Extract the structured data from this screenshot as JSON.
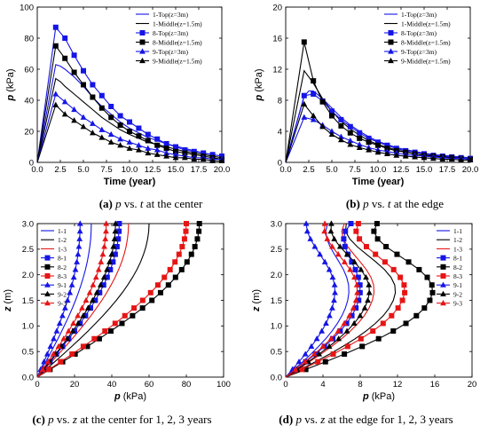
{
  "colors": {
    "blue": "#1515e6",
    "black": "#000000",
    "red": "#e61515"
  },
  "chart_data": [
    {
      "panel": "a",
      "type": "line",
      "xlabel": "Time (year)",
      "ylabel": "p (kPa)",
      "xlim": [
        0,
        20
      ],
      "ylim": [
        0,
        100
      ],
      "xticks": [
        "0.0",
        "2.5",
        "5.0",
        "7.5",
        "10.0",
        "12.5",
        "15.0",
        "17.5",
        "20.0"
      ],
      "yticks": [
        "0",
        "20",
        "40",
        "60",
        "80",
        "100"
      ],
      "legend_position": "top-right",
      "caption": {
        "letter": "(a)",
        "var1": "p",
        "mid": "vs.",
        "var2": "t",
        "rest": "at the center"
      },
      "series": [
        {
          "name": "1-Top(z=3m)",
          "color": "blue",
          "marker": "none",
          "x": [
            0,
            2,
            2.5,
            3,
            4,
            5,
            6,
            7,
            8,
            9,
            10,
            12,
            14,
            16,
            18,
            20
          ],
          "y": [
            0,
            63,
            62,
            60,
            55,
            49,
            42,
            36,
            31,
            26,
            22,
            16,
            12,
            9,
            6,
            4
          ]
        },
        {
          "name": "1-Middle(z=1.5m)",
          "color": "black",
          "marker": "none",
          "x": [
            0,
            2,
            2.5,
            3,
            4,
            5,
            6,
            7,
            8,
            9,
            10,
            12,
            14,
            16,
            18,
            20
          ],
          "y": [
            0,
            54,
            52,
            49,
            44,
            39,
            34,
            29,
            25,
            21,
            18,
            13,
            10,
            7,
            5,
            3
          ]
        },
        {
          "name": "8-Top(z=3m)",
          "color": "blue",
          "marker": "square",
          "x": [
            0,
            2,
            3,
            4,
            5,
            6,
            7,
            8,
            9,
            10,
            11,
            12,
            13,
            14,
            15,
            16,
            17,
            18,
            19,
            20
          ],
          "y": [
            0,
            87,
            80,
            69,
            59,
            50,
            43,
            36,
            30,
            26,
            22,
            18,
            15,
            12,
            10,
            8,
            7,
            6,
            5,
            4
          ]
        },
        {
          "name": "8-Middle(z=1.5m)",
          "color": "black",
          "marker": "square",
          "x": [
            0,
            2,
            3,
            4,
            5,
            6,
            7,
            8,
            9,
            10,
            11,
            12,
            13,
            14,
            15,
            16,
            17,
            18,
            19,
            20
          ],
          "y": [
            0,
            75,
            67,
            58,
            50,
            42,
            35,
            29,
            24,
            20,
            17,
            14,
            11,
            9,
            7,
            6,
            5,
            4,
            3,
            2
          ]
        },
        {
          "name": "9-Top(z=3m)",
          "color": "blue",
          "marker": "triangle",
          "x": [
            0,
            2,
            3,
            4,
            5,
            6,
            7,
            8,
            9,
            10,
            11,
            12,
            13,
            14,
            15,
            16,
            17,
            18,
            19,
            20
          ],
          "y": [
            0,
            44,
            39,
            34,
            29,
            25,
            21,
            18,
            15,
            13,
            11,
            9,
            8,
            6,
            5,
            4,
            3,
            3,
            2,
            2
          ]
        },
        {
          "name": "9-Middle(z=1.5m)",
          "color": "black",
          "marker": "triangle",
          "x": [
            0,
            2,
            3,
            4,
            5,
            6,
            7,
            8,
            9,
            10,
            11,
            12,
            13,
            14,
            15,
            16,
            17,
            18,
            19,
            20
          ],
          "y": [
            0,
            37,
            31,
            27,
            23,
            19,
            16,
            13,
            11,
            9,
            8,
            6,
            5,
            4,
            3,
            3,
            2,
            2,
            1,
            1
          ]
        }
      ]
    },
    {
      "panel": "b",
      "type": "line",
      "xlabel": "Time (year)",
      "ylabel": "p (kPa)",
      "xlim": [
        0,
        20
      ],
      "ylim": [
        0,
        20
      ],
      "xticks": [
        "0.0",
        "2.5",
        "5.0",
        "7.5",
        "10.0",
        "12.5",
        "15.0",
        "17.5",
        "20.0"
      ],
      "yticks": [
        "0",
        "4",
        "8",
        "12",
        "16",
        "20"
      ],
      "legend_position": "top-right",
      "caption": {
        "letter": "(b)",
        "var1": "p",
        "mid": "vs.",
        "var2": "t",
        "rest": "at the edge"
      },
      "series": [
        {
          "name": "1-Top(z=3m)",
          "color": "blue",
          "marker": "none",
          "x": [
            0,
            2,
            2.5,
            3,
            4,
            5,
            6,
            7,
            8,
            9,
            10,
            12,
            14,
            16,
            18,
            20
          ],
          "y": [
            0,
            8.5,
            9.2,
            9.2,
            8.2,
            7.0,
            5.8,
            4.8,
            4.0,
            3.3,
            2.7,
            1.9,
            1.4,
            1.0,
            0.8,
            0.6
          ]
        },
        {
          "name": "1-Middle(z=1.5m)",
          "color": "black",
          "marker": "none",
          "x": [
            0,
            2,
            3,
            4,
            5,
            6,
            7,
            8,
            9,
            10,
            12,
            14,
            16,
            18,
            20
          ],
          "y": [
            0,
            11.8,
            10.2,
            8.2,
            6.6,
            5.3,
            4.3,
            3.5,
            2.8,
            2.3,
            1.6,
            1.1,
            0.8,
            0.6,
            0.4
          ]
        },
        {
          "name": "8-Top(z=3m)",
          "color": "blue",
          "marker": "square",
          "x": [
            0,
            2,
            3,
            4,
            5,
            6,
            7,
            8,
            9,
            10,
            11,
            12,
            13,
            14,
            15,
            16,
            17,
            18,
            19,
            20
          ],
          "y": [
            0,
            8.6,
            8.8,
            7.9,
            6.6,
            5.5,
            4.6,
            3.8,
            3.1,
            2.6,
            2.2,
            1.8,
            1.5,
            1.3,
            1.1,
            0.9,
            0.8,
            0.7,
            0.6,
            0.5
          ]
        },
        {
          "name": "8-Middle(z=1.5m)",
          "color": "black",
          "marker": "square",
          "x": [
            0,
            2,
            3,
            4,
            5,
            6,
            7,
            8,
            9,
            10,
            11,
            12,
            13,
            14,
            15,
            16,
            17,
            18,
            19,
            20
          ],
          "y": [
            0,
            15.5,
            10.5,
            7.8,
            6.0,
            4.7,
            3.8,
            3.1,
            2.6,
            2.2,
            1.8,
            1.5,
            1.3,
            1.1,
            0.9,
            0.8,
            0.7,
            0.6,
            0.5,
            0.4
          ]
        },
        {
          "name": "9-Top(z=3m)",
          "color": "blue",
          "marker": "triangle",
          "x": [
            0,
            2,
            3,
            4,
            5,
            6,
            7,
            8,
            9,
            10,
            11,
            12,
            13,
            14,
            15,
            16,
            17,
            18,
            19,
            20
          ],
          "y": [
            0,
            5.8,
            5.5,
            4.8,
            4.0,
            3.3,
            2.8,
            2.3,
            1.9,
            1.6,
            1.4,
            1.2,
            1.0,
            0.9,
            0.8,
            0.7,
            0.6,
            0.5,
            0.5,
            0.4
          ]
        },
        {
          "name": "9-Middle(z=1.5m)",
          "color": "black",
          "marker": "triangle",
          "x": [
            0,
            2,
            3,
            4,
            5,
            6,
            7,
            8,
            9,
            10,
            11,
            12,
            13,
            14,
            15,
            16,
            17,
            18,
            19,
            20
          ],
          "y": [
            0,
            7.5,
            6.0,
            4.6,
            3.6,
            2.9,
            2.3,
            1.9,
            1.6,
            1.3,
            1.1,
            0.9,
            0.8,
            0.7,
            0.6,
            0.5,
            0.4,
            0.4,
            0.3,
            0.3
          ]
        }
      ]
    },
    {
      "panel": "c",
      "type": "line",
      "xlabel": "p (kPa)",
      "ylabel": "z (m)",
      "xlim": [
        0,
        100
      ],
      "ylim": [
        0,
        3
      ],
      "xticks": [
        "0",
        "20",
        "40",
        "60",
        "80",
        "100"
      ],
      "yticks": [
        "0.0",
        "0.5",
        "1.0",
        "1.5",
        "2.0",
        "2.5",
        "3.0"
      ],
      "legend_position": "top-left",
      "caption": {
        "letter": "(c)",
        "var1": "p",
        "mid": "vs.",
        "var2": "z",
        "rest": "at the center for 1, 2, 3 years"
      },
      "series": [
        {
          "name": "1-1",
          "color": "blue",
          "marker": "none",
          "top": 29,
          "bottom": 0
        },
        {
          "name": "1-2",
          "color": "black",
          "marker": "none",
          "top": 60,
          "bottom": 0
        },
        {
          "name": "1-3",
          "color": "red",
          "marker": "none",
          "top": 49,
          "bottom": 0
        },
        {
          "name": "8-1",
          "color": "blue",
          "marker": "square",
          "top": 44,
          "bottom": 0
        },
        {
          "name": "8-2",
          "color": "black",
          "marker": "square",
          "top": 87,
          "bottom": 0
        },
        {
          "name": "8-3",
          "color": "red",
          "marker": "square",
          "top": 80,
          "bottom": 0
        },
        {
          "name": "9-1",
          "color": "blue",
          "marker": "triangle",
          "top": 23,
          "bottom": 0
        },
        {
          "name": "9-2",
          "color": "black",
          "marker": "triangle",
          "top": 42,
          "bottom": 0
        },
        {
          "name": "9-3",
          "color": "red",
          "marker": "triangle",
          "top": 37,
          "bottom": 0
        }
      ]
    },
    {
      "panel": "d",
      "type": "line",
      "xlabel": "p (kPa)",
      "ylabel": "z (m)",
      "xlim": [
        0,
        20
      ],
      "ylim": [
        0,
        3
      ],
      "xticks": [
        "0",
        "4",
        "8",
        "12",
        "16",
        "20"
      ],
      "yticks": [
        "0.0",
        "0.5",
        "1.0",
        "1.5",
        "2.0",
        "2.5",
        "3.0"
      ],
      "legend_position": "top-right",
      "caption": {
        "letter": "(d)",
        "var1": "p",
        "mid": "vs.",
        "var2": "z",
        "rest": "at the edge for 1, 2, 3 years"
      },
      "series": [
        {
          "name": "1-1",
          "color": "blue",
          "marker": "none",
          "top": 4.5,
          "bottom": 6.8
        },
        {
          "name": "1-2",
          "color": "black",
          "marker": "none",
          "top": 6.5,
          "bottom": 11.8
        },
        {
          "name": "1-3",
          "color": "red",
          "marker": "none",
          "top": 6.3,
          "bottom": 9.5
        },
        {
          "name": "8-1",
          "color": "blue",
          "marker": "square",
          "top": 7.0,
          "bottom": 8.0
        },
        {
          "name": "8-2",
          "color": "black",
          "marker": "square",
          "top": 9.8,
          "bottom": 15.8
        },
        {
          "name": "8-3",
          "color": "red",
          "marker": "square",
          "top": 7.8,
          "bottom": 12.8
        },
        {
          "name": "9-1",
          "color": "blue",
          "marker": "triangle",
          "top": 2.2,
          "bottom": 5.3
        },
        {
          "name": "9-2",
          "color": "black",
          "marker": "triangle",
          "top": 4.9,
          "bottom": 9.0
        },
        {
          "name": "9-3",
          "color": "red",
          "marker": "triangle",
          "top": 4.2,
          "bottom": 7.7
        }
      ]
    }
  ]
}
